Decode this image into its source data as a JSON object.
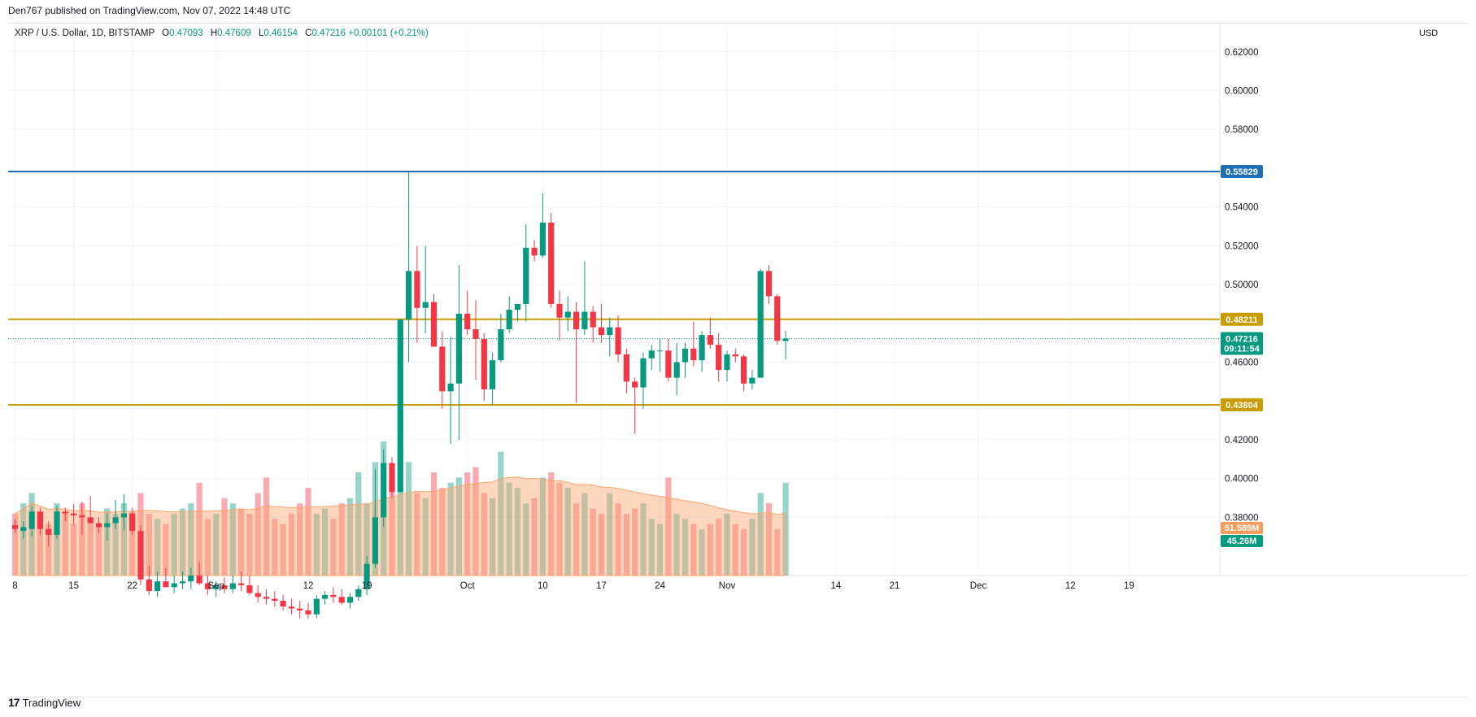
{
  "header": {
    "published": "Den767 published on TradingView.com, Nov 07, 2022 14:48 UTC"
  },
  "legend": {
    "symbol": "XRP / U.S. Dollar, 1D, BITSTAMP",
    "o_label": "O",
    "o": "0.47093",
    "h_label": "H",
    "h": "0.47609",
    "l_label": "L",
    "l": "0.46154",
    "c_label": "C",
    "c": "0.47216",
    "change": "+0.00101 (+0.21%)"
  },
  "axis": {
    "currency": "USD"
  },
  "footer": {
    "logo": "17",
    "brand": "TradingView"
  },
  "colors": {
    "up": "#089981",
    "down": "#f23645",
    "resistance": "#1e6fb8",
    "support": "#c99d00",
    "volume_ma": "#f9a66e"
  },
  "chart_data": {
    "type": "candlestick",
    "symbol": "XRP / U.S. Dollar",
    "interval": "1D",
    "exchange": "BITSTAMP",
    "ylim": [
      0.35,
      0.635
    ],
    "y_ticks": [
      "0.62000",
      "0.60000",
      "0.58000",
      "0.54000",
      "0.52000",
      "0.50000",
      "0.46000",
      "0.42000",
      "0.40000",
      "0.38000"
    ],
    "x_ticks": [
      {
        "label": "8",
        "day": 0
      },
      {
        "label": "15",
        "day": 7
      },
      {
        "label": "22",
        "day": 14
      },
      {
        "label": "Sep",
        "day": 24
      },
      {
        "label": "12",
        "day": 35
      },
      {
        "label": "19",
        "day": 42
      },
      {
        "label": "Oct",
        "day": 54
      },
      {
        "label": "10",
        "day": 63
      },
      {
        "label": "17",
        "day": 70
      },
      {
        "label": "24",
        "day": 77
      },
      {
        "label": "Nov",
        "day": 85
      },
      {
        "label": "14",
        "day": 98
      },
      {
        "label": "21",
        "day": 105
      },
      {
        "label": "Dec",
        "day": 115
      },
      {
        "label": "12",
        "day": 126
      },
      {
        "label": "19",
        "day": 133
      }
    ],
    "start_date": "2022-08-07",
    "candles": [
      {
        "o": 0.376,
        "h": 0.379,
        "l": 0.372,
        "c": 0.374
      },
      {
        "o": 0.373,
        "h": 0.378,
        "l": 0.369,
        "c": 0.375
      },
      {
        "o": 0.374,
        "h": 0.386,
        "l": 0.37,
        "c": 0.383
      },
      {
        "o": 0.383,
        "h": 0.385,
        "l": 0.371,
        "c": 0.374
      },
      {
        "o": 0.374,
        "h": 0.378,
        "l": 0.365,
        "c": 0.371
      },
      {
        "o": 0.371,
        "h": 0.386,
        "l": 0.369,
        "c": 0.383
      },
      {
        "o": 0.383,
        "h": 0.385,
        "l": 0.378,
        "c": 0.382
      },
      {
        "o": 0.382,
        "h": 0.387,
        "l": 0.376,
        "c": 0.381
      },
      {
        "o": 0.381,
        "h": 0.388,
        "l": 0.371,
        "c": 0.38
      },
      {
        "o": 0.38,
        "h": 0.391,
        "l": 0.377,
        "c": 0.377
      },
      {
        "o": 0.377,
        "h": 0.38,
        "l": 0.372,
        "c": 0.375
      },
      {
        "o": 0.375,
        "h": 0.382,
        "l": 0.368,
        "c": 0.377
      },
      {
        "o": 0.377,
        "h": 0.389,
        "l": 0.374,
        "c": 0.38
      },
      {
        "o": 0.38,
        "h": 0.392,
        "l": 0.373,
        "c": 0.382
      },
      {
        "o": 0.382,
        "h": 0.385,
        "l": 0.371,
        "c": 0.373
      },
      {
        "o": 0.373,
        "h": 0.376,
        "l": 0.345,
        "c": 0.348
      },
      {
        "o": 0.348,
        "h": 0.355,
        "l": 0.34,
        "c": 0.342
      },
      {
        "o": 0.342,
        "h": 0.352,
        "l": 0.339,
        "c": 0.347
      },
      {
        "o": 0.347,
        "h": 0.354,
        "l": 0.344,
        "c": 0.344
      },
      {
        "o": 0.344,
        "h": 0.35,
        "l": 0.341,
        "c": 0.346
      },
      {
        "o": 0.346,
        "h": 0.352,
        "l": 0.343,
        "c": 0.347
      },
      {
        "o": 0.347,
        "h": 0.354,
        "l": 0.343,
        "c": 0.35
      },
      {
        "o": 0.35,
        "h": 0.357,
        "l": 0.345,
        "c": 0.346
      },
      {
        "o": 0.346,
        "h": 0.35,
        "l": 0.34,
        "c": 0.343
      },
      {
        "o": 0.343,
        "h": 0.347,
        "l": 0.339,
        "c": 0.345
      },
      {
        "o": 0.345,
        "h": 0.349,
        "l": 0.341,
        "c": 0.343
      },
      {
        "o": 0.343,
        "h": 0.35,
        "l": 0.341,
        "c": 0.346
      },
      {
        "o": 0.346,
        "h": 0.352,
        "l": 0.342,
        "c": 0.345
      },
      {
        "o": 0.345,
        "h": 0.35,
        "l": 0.34,
        "c": 0.341
      },
      {
        "o": 0.341,
        "h": 0.345,
        "l": 0.336,
        "c": 0.339
      },
      {
        "o": 0.339,
        "h": 0.343,
        "l": 0.335,
        "c": 0.338
      },
      {
        "o": 0.338,
        "h": 0.342,
        "l": 0.334,
        "c": 0.337
      },
      {
        "o": 0.337,
        "h": 0.34,
        "l": 0.332,
        "c": 0.334
      },
      {
        "o": 0.334,
        "h": 0.338,
        "l": 0.33,
        "c": 0.333
      },
      {
        "o": 0.333,
        "h": 0.337,
        "l": 0.328,
        "c": 0.332
      },
      {
        "o": 0.332,
        "h": 0.336,
        "l": 0.328,
        "c": 0.33
      },
      {
        "o": 0.33,
        "h": 0.34,
        "l": 0.328,
        "c": 0.338
      },
      {
        "o": 0.338,
        "h": 0.342,
        "l": 0.335,
        "c": 0.34
      },
      {
        "o": 0.34,
        "h": 0.344,
        "l": 0.336,
        "c": 0.339
      },
      {
        "o": 0.339,
        "h": 0.343,
        "l": 0.335,
        "c": 0.336
      },
      {
        "o": 0.336,
        "h": 0.341,
        "l": 0.333,
        "c": 0.339
      },
      {
        "o": 0.339,
        "h": 0.345,
        "l": 0.337,
        "c": 0.343
      },
      {
        "o": 0.343,
        "h": 0.36,
        "l": 0.34,
        "c": 0.356
      },
      {
        "o": 0.356,
        "h": 0.405,
        "l": 0.354,
        "c": 0.38
      },
      {
        "o": 0.38,
        "h": 0.415,
        "l": 0.375,
        "c": 0.408
      },
      {
        "o": 0.408,
        "h": 0.411,
        "l": 0.39,
        "c": 0.393
      },
      {
        "o": 0.393,
        "h": 0.482,
        "l": 0.393,
        "c": 0.482
      },
      {
        "o": 0.482,
        "h": 0.558,
        "l": 0.46,
        "c": 0.507
      },
      {
        "o": 0.507,
        "h": 0.52,
        "l": 0.47,
        "c": 0.488
      },
      {
        "o": 0.488,
        "h": 0.52,
        "l": 0.475,
        "c": 0.491
      },
      {
        "o": 0.491,
        "h": 0.495,
        "l": 0.468,
        "c": 0.468
      },
      {
        "o": 0.468,
        "h": 0.476,
        "l": 0.436,
        "c": 0.445
      },
      {
        "o": 0.445,
        "h": 0.473,
        "l": 0.418,
        "c": 0.449
      },
      {
        "o": 0.449,
        "h": 0.51,
        "l": 0.42,
        "c": 0.485
      },
      {
        "o": 0.485,
        "h": 0.497,
        "l": 0.474,
        "c": 0.477
      },
      {
        "o": 0.477,
        "h": 0.492,
        "l": 0.451,
        "c": 0.472
      },
      {
        "o": 0.472,
        "h": 0.475,
        "l": 0.44,
        "c": 0.446
      },
      {
        "o": 0.446,
        "h": 0.465,
        "l": 0.438,
        "c": 0.461
      },
      {
        "o": 0.461,
        "h": 0.485,
        "l": 0.46,
        "c": 0.477
      },
      {
        "o": 0.477,
        "h": 0.494,
        "l": 0.475,
        "c": 0.487
      },
      {
        "o": 0.487,
        "h": 0.49,
        "l": 0.481,
        "c": 0.49
      },
      {
        "o": 0.49,
        "h": 0.531,
        "l": 0.481,
        "c": 0.519
      },
      {
        "o": 0.519,
        "h": 0.523,
        "l": 0.512,
        "c": 0.515
      },
      {
        "o": 0.515,
        "h": 0.547,
        "l": 0.514,
        "c": 0.532
      },
      {
        "o": 0.532,
        "h": 0.537,
        "l": 0.488,
        "c": 0.49
      },
      {
        "o": 0.49,
        "h": 0.497,
        "l": 0.471,
        "c": 0.483
      },
      {
        "o": 0.483,
        "h": 0.494,
        "l": 0.476,
        "c": 0.486
      },
      {
        "o": 0.486,
        "h": 0.491,
        "l": 0.439,
        "c": 0.477
      },
      {
        "o": 0.477,
        "h": 0.512,
        "l": 0.474,
        "c": 0.486
      },
      {
        "o": 0.486,
        "h": 0.489,
        "l": 0.47,
        "c": 0.478
      },
      {
        "o": 0.478,
        "h": 0.49,
        "l": 0.47,
        "c": 0.474
      },
      {
        "o": 0.474,
        "h": 0.483,
        "l": 0.463,
        "c": 0.478
      },
      {
        "o": 0.478,
        "h": 0.484,
        "l": 0.46,
        "c": 0.464
      },
      {
        "o": 0.464,
        "h": 0.467,
        "l": 0.444,
        "c": 0.45
      },
      {
        "o": 0.45,
        "h": 0.452,
        "l": 0.423,
        "c": 0.447
      },
      {
        "o": 0.447,
        "h": 0.465,
        "l": 0.436,
        "c": 0.462
      },
      {
        "o": 0.462,
        "h": 0.469,
        "l": 0.456,
        "c": 0.466
      },
      {
        "o": 0.466,
        "h": 0.472,
        "l": 0.455,
        "c": 0.466
      },
      {
        "o": 0.466,
        "h": 0.472,
        "l": 0.45,
        "c": 0.452
      },
      {
        "o": 0.452,
        "h": 0.47,
        "l": 0.443,
        "c": 0.46
      },
      {
        "o": 0.46,
        "h": 0.47,
        "l": 0.452,
        "c": 0.467
      },
      {
        "o": 0.467,
        "h": 0.481,
        "l": 0.458,
        "c": 0.461
      },
      {
        "o": 0.461,
        "h": 0.476,
        "l": 0.455,
        "c": 0.474
      },
      {
        "o": 0.474,
        "h": 0.483,
        "l": 0.467,
        "c": 0.469
      },
      {
        "o": 0.469,
        "h": 0.475,
        "l": 0.45,
        "c": 0.456
      },
      {
        "o": 0.456,
        "h": 0.466,
        "l": 0.45,
        "c": 0.464
      },
      {
        "o": 0.464,
        "h": 0.467,
        "l": 0.46,
        "c": 0.463
      },
      {
        "o": 0.463,
        "h": 0.464,
        "l": 0.445,
        "c": 0.449
      },
      {
        "o": 0.449,
        "h": 0.456,
        "l": 0.446,
        "c": 0.452
      },
      {
        "o": 0.452,
        "h": 0.508,
        "l": 0.452,
        "c": 0.507
      },
      {
        "o": 0.507,
        "h": 0.51,
        "l": 0.49,
        "c": 0.494
      },
      {
        "o": 0.494,
        "h": 0.495,
        "l": 0.469,
        "c": 0.471
      },
      {
        "o": 0.47093,
        "h": 0.47609,
        "l": 0.46154,
        "c": 0.47216
      }
    ],
    "volume": [
      0.6,
      0.7,
      0.8,
      0.6,
      0.5,
      0.7,
      0.6,
      0.5,
      0.7,
      0.55,
      0.5,
      0.65,
      0.6,
      0.7,
      0.62,
      0.8,
      0.6,
      0.55,
      0.5,
      0.6,
      0.65,
      0.7,
      0.9,
      0.55,
      0.6,
      0.75,
      0.7,
      0.65,
      0.6,
      0.8,
      0.95,
      0.55,
      0.5,
      0.6,
      0.7,
      0.85,
      0.6,
      0.65,
      0.55,
      0.7,
      0.75,
      1.0,
      0.7,
      1.1,
      1.3,
      0.9,
      1.2,
      1.1,
      0.8,
      0.75,
      1.0,
      0.85,
      0.9,
      0.95,
      1.0,
      1.05,
      0.8,
      0.75,
      1.2,
      0.9,
      0.85,
      0.7,
      0.75,
      0.95,
      1.0,
      0.9,
      0.85,
      0.7,
      0.8,
      0.65,
      0.6,
      0.8,
      0.7,
      0.6,
      0.65,
      0.7,
      0.55,
      0.5,
      0.95,
      0.6,
      0.55,
      0.5,
      0.45,
      0.5,
      0.55,
      0.6,
      0.5,
      0.45,
      0.55,
      0.8,
      0.7,
      0.45,
      0.9
    ],
    "volume_ma_label": "51.589M",
    "volume_label": "45.26M",
    "horizontal_lines": [
      {
        "name": "resistance",
        "value": 0.55829,
        "label": "0.55829"
      },
      {
        "name": "support-upper",
        "value": 0.48211,
        "label": "0.48211"
      },
      {
        "name": "support-lower",
        "value": 0.43804,
        "label": "0.43804"
      }
    ],
    "last_price": {
      "value": 0.47216,
      "label": "0.47216",
      "countdown": "09:11:54"
    }
  }
}
